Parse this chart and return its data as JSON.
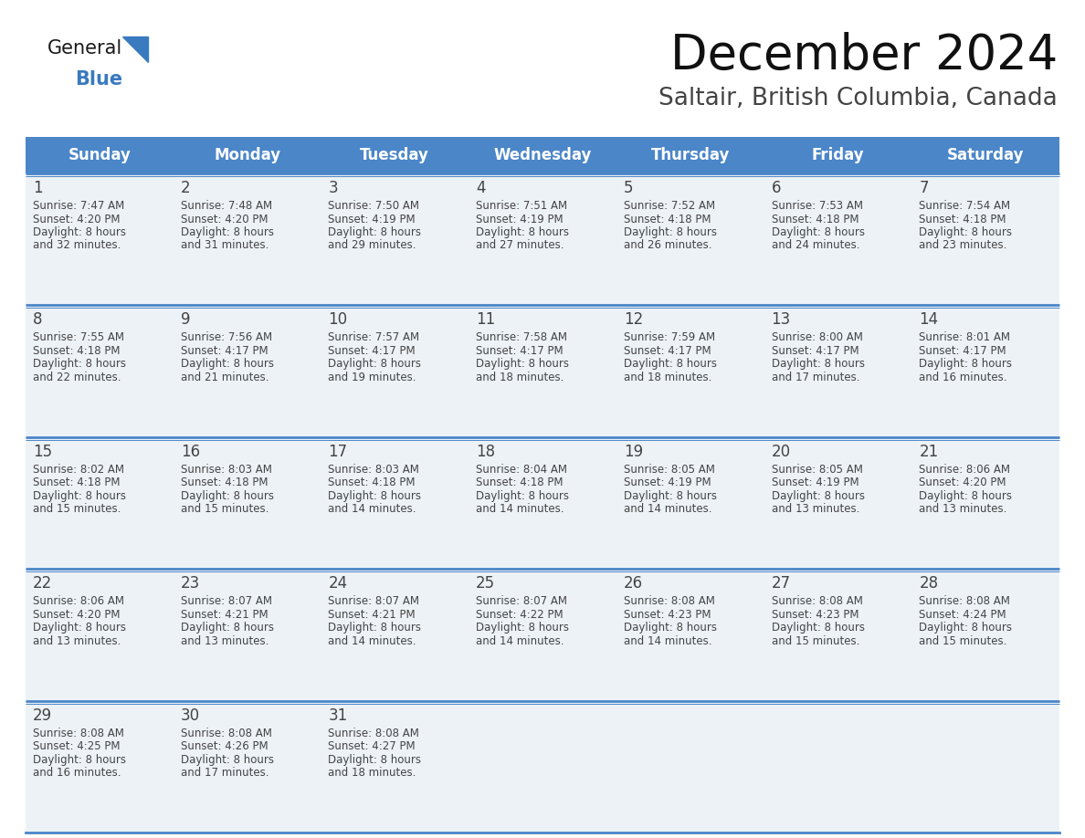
{
  "title": "December 2024",
  "subtitle": "Saltair, British Columbia, Canada",
  "header_color": "#4a86c8",
  "header_text_color": "#ffffff",
  "day_names": [
    "Sunday",
    "Monday",
    "Tuesday",
    "Wednesday",
    "Thursday",
    "Friday",
    "Saturday"
  ],
  "bg_color": "#ffffff",
  "cell_bg": "#edf2f7",
  "row_line_color": "#4a86c8",
  "text_color": "#444444",
  "days": [
    {
      "day": 1,
      "col": 0,
      "row": 0,
      "sunrise": "7:47 AM",
      "sunset": "4:20 PM",
      "daylight": "8 hours",
      "daylight2": "and 32 minutes."
    },
    {
      "day": 2,
      "col": 1,
      "row": 0,
      "sunrise": "7:48 AM",
      "sunset": "4:20 PM",
      "daylight": "8 hours",
      "daylight2": "and 31 minutes."
    },
    {
      "day": 3,
      "col": 2,
      "row": 0,
      "sunrise": "7:50 AM",
      "sunset": "4:19 PM",
      "daylight": "8 hours",
      "daylight2": "and 29 minutes."
    },
    {
      "day": 4,
      "col": 3,
      "row": 0,
      "sunrise": "7:51 AM",
      "sunset": "4:19 PM",
      "daylight": "8 hours",
      "daylight2": "and 27 minutes."
    },
    {
      "day": 5,
      "col": 4,
      "row": 0,
      "sunrise": "7:52 AM",
      "sunset": "4:18 PM",
      "daylight": "8 hours",
      "daylight2": "and 26 minutes."
    },
    {
      "day": 6,
      "col": 5,
      "row": 0,
      "sunrise": "7:53 AM",
      "sunset": "4:18 PM",
      "daylight": "8 hours",
      "daylight2": "and 24 minutes."
    },
    {
      "day": 7,
      "col": 6,
      "row": 0,
      "sunrise": "7:54 AM",
      "sunset": "4:18 PM",
      "daylight": "8 hours",
      "daylight2": "and 23 minutes."
    },
    {
      "day": 8,
      "col": 0,
      "row": 1,
      "sunrise": "7:55 AM",
      "sunset": "4:18 PM",
      "daylight": "8 hours",
      "daylight2": "and 22 minutes."
    },
    {
      "day": 9,
      "col": 1,
      "row": 1,
      "sunrise": "7:56 AM",
      "sunset": "4:17 PM",
      "daylight": "8 hours",
      "daylight2": "and 21 minutes."
    },
    {
      "day": 10,
      "col": 2,
      "row": 1,
      "sunrise": "7:57 AM",
      "sunset": "4:17 PM",
      "daylight": "8 hours",
      "daylight2": "and 19 minutes."
    },
    {
      "day": 11,
      "col": 3,
      "row": 1,
      "sunrise": "7:58 AM",
      "sunset": "4:17 PM",
      "daylight": "8 hours",
      "daylight2": "and 18 minutes."
    },
    {
      "day": 12,
      "col": 4,
      "row": 1,
      "sunrise": "7:59 AM",
      "sunset": "4:17 PM",
      "daylight": "8 hours",
      "daylight2": "and 18 minutes."
    },
    {
      "day": 13,
      "col": 5,
      "row": 1,
      "sunrise": "8:00 AM",
      "sunset": "4:17 PM",
      "daylight": "8 hours",
      "daylight2": "and 17 minutes."
    },
    {
      "day": 14,
      "col": 6,
      "row": 1,
      "sunrise": "8:01 AM",
      "sunset": "4:17 PM",
      "daylight": "8 hours",
      "daylight2": "and 16 minutes."
    },
    {
      "day": 15,
      "col": 0,
      "row": 2,
      "sunrise": "8:02 AM",
      "sunset": "4:18 PM",
      "daylight": "8 hours",
      "daylight2": "and 15 minutes."
    },
    {
      "day": 16,
      "col": 1,
      "row": 2,
      "sunrise": "8:03 AM",
      "sunset": "4:18 PM",
      "daylight": "8 hours",
      "daylight2": "and 15 minutes."
    },
    {
      "day": 17,
      "col": 2,
      "row": 2,
      "sunrise": "8:03 AM",
      "sunset": "4:18 PM",
      "daylight": "8 hours",
      "daylight2": "and 14 minutes."
    },
    {
      "day": 18,
      "col": 3,
      "row": 2,
      "sunrise": "8:04 AM",
      "sunset": "4:18 PM",
      "daylight": "8 hours",
      "daylight2": "and 14 minutes."
    },
    {
      "day": 19,
      "col": 4,
      "row": 2,
      "sunrise": "8:05 AM",
      "sunset": "4:19 PM",
      "daylight": "8 hours",
      "daylight2": "and 14 minutes."
    },
    {
      "day": 20,
      "col": 5,
      "row": 2,
      "sunrise": "8:05 AM",
      "sunset": "4:19 PM",
      "daylight": "8 hours",
      "daylight2": "and 13 minutes."
    },
    {
      "day": 21,
      "col": 6,
      "row": 2,
      "sunrise": "8:06 AM",
      "sunset": "4:20 PM",
      "daylight": "8 hours",
      "daylight2": "and 13 minutes."
    },
    {
      "day": 22,
      "col": 0,
      "row": 3,
      "sunrise": "8:06 AM",
      "sunset": "4:20 PM",
      "daylight": "8 hours",
      "daylight2": "and 13 minutes."
    },
    {
      "day": 23,
      "col": 1,
      "row": 3,
      "sunrise": "8:07 AM",
      "sunset": "4:21 PM",
      "daylight": "8 hours",
      "daylight2": "and 13 minutes."
    },
    {
      "day": 24,
      "col": 2,
      "row": 3,
      "sunrise": "8:07 AM",
      "sunset": "4:21 PM",
      "daylight": "8 hours",
      "daylight2": "and 14 minutes."
    },
    {
      "day": 25,
      "col": 3,
      "row": 3,
      "sunrise": "8:07 AM",
      "sunset": "4:22 PM",
      "daylight": "8 hours",
      "daylight2": "and 14 minutes."
    },
    {
      "day": 26,
      "col": 4,
      "row": 3,
      "sunrise": "8:08 AM",
      "sunset": "4:23 PM",
      "daylight": "8 hours",
      "daylight2": "and 14 minutes."
    },
    {
      "day": 27,
      "col": 5,
      "row": 3,
      "sunrise": "8:08 AM",
      "sunset": "4:23 PM",
      "daylight": "8 hours",
      "daylight2": "and 15 minutes."
    },
    {
      "day": 28,
      "col": 6,
      "row": 3,
      "sunrise": "8:08 AM",
      "sunset": "4:24 PM",
      "daylight": "8 hours",
      "daylight2": "and 15 minutes."
    },
    {
      "day": 29,
      "col": 0,
      "row": 4,
      "sunrise": "8:08 AM",
      "sunset": "4:25 PM",
      "daylight": "8 hours",
      "daylight2": "and 16 minutes."
    },
    {
      "day": 30,
      "col": 1,
      "row": 4,
      "sunrise": "8:08 AM",
      "sunset": "4:26 PM",
      "daylight": "8 hours",
      "daylight2": "and 17 minutes."
    },
    {
      "day": 31,
      "col": 2,
      "row": 4,
      "sunrise": "8:08 AM",
      "sunset": "4:27 PM",
      "daylight": "8 hours",
      "daylight2": "and 18 minutes."
    }
  ],
  "logo_general_color": "#1a1a1a",
  "logo_blue_color": "#3a7abf",
  "title_fontsize": 38,
  "subtitle_fontsize": 19,
  "header_fontsize": 12,
  "day_num_fontsize": 12,
  "cell_text_fontsize": 8.5
}
